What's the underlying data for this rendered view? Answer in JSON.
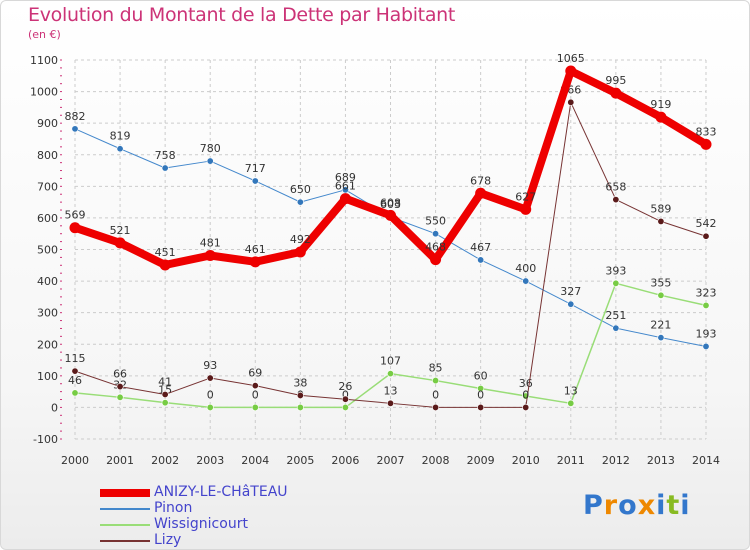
{
  "header": {
    "title": "Evolution du Montant de la Dette par Habitant",
    "subtitle": "(en €)"
  },
  "logo": {
    "text": "Proxiti"
  },
  "colors": {
    "title": "#cc3377",
    "grid": "#cccccc",
    "axis_tick": "#cc3377",
    "label": "#333333"
  },
  "chart_data": {
    "type": "line",
    "title": "Evolution du Montant de la Dette par Habitant",
    "ylabel": "(en €)",
    "xlabel": "",
    "categories": [
      "2000",
      "2001",
      "2002",
      "2003",
      "2004",
      "2005",
      "2006",
      "2007",
      "2008",
      "2009",
      "2010",
      "2011",
      "2012",
      "2013",
      "2014"
    ],
    "ylim": [
      -100,
      1100
    ],
    "yticks": [
      -100,
      0,
      100,
      200,
      300,
      400,
      500,
      600,
      700,
      800,
      900,
      1000,
      1100
    ],
    "grid": true,
    "legend_position": "bottom-left",
    "series": [
      {
        "name": "Pinon",
        "color": "#4488cc",
        "marker": "#3377bb",
        "width": 1,
        "values": [
          882,
          819,
          758,
          780,
          717,
          650,
          689,
          603,
          550,
          467,
          400,
          327,
          251,
          221,
          193
        ]
      },
      {
        "name": "Wissignicourt",
        "color": "#99dd77",
        "marker": "#77cc44",
        "width": 1.5,
        "values": [
          46,
          32,
          15,
          0,
          0,
          0,
          0,
          107,
          85,
          60,
          36,
          13,
          393,
          355,
          323
        ]
      },
      {
        "name": "Lizy",
        "color": "#773333",
        "marker": "#5a1a1a",
        "width": 1,
        "values": [
          115,
          66,
          41,
          93,
          69,
          38,
          26,
          13,
          0,
          0,
          0,
          966,
          658,
          589,
          542
        ]
      },
      {
        "name": "ANIZY-LE-CHâTEAU",
        "color": "#ee0000",
        "marker": "#ee0000",
        "width": 8,
        "values": [
          569,
          521,
          451,
          481,
          461,
          492,
          661,
          608,
          468,
          678,
          627,
          1065,
          995,
          919,
          833
        ]
      }
    ],
    "legend_order": [
      "ANIZY-LE-CHâTEAU",
      "Pinon",
      "Wissignicourt",
      "Lizy"
    ],
    "legend_colors": {
      "ANIZY-LE-CHâTEAU": "#ee0000",
      "Pinon": "#4488cc",
      "Wissignicourt": "#99dd77",
      "Lizy": "#773333"
    },
    "legend_text_colors": {
      "ANIZY-LE-CHâTEAU": "#4444cc",
      "Pinon": "#4444cc",
      "Wissignicourt": "#4444cc",
      "Lizy": "#4444cc"
    }
  }
}
